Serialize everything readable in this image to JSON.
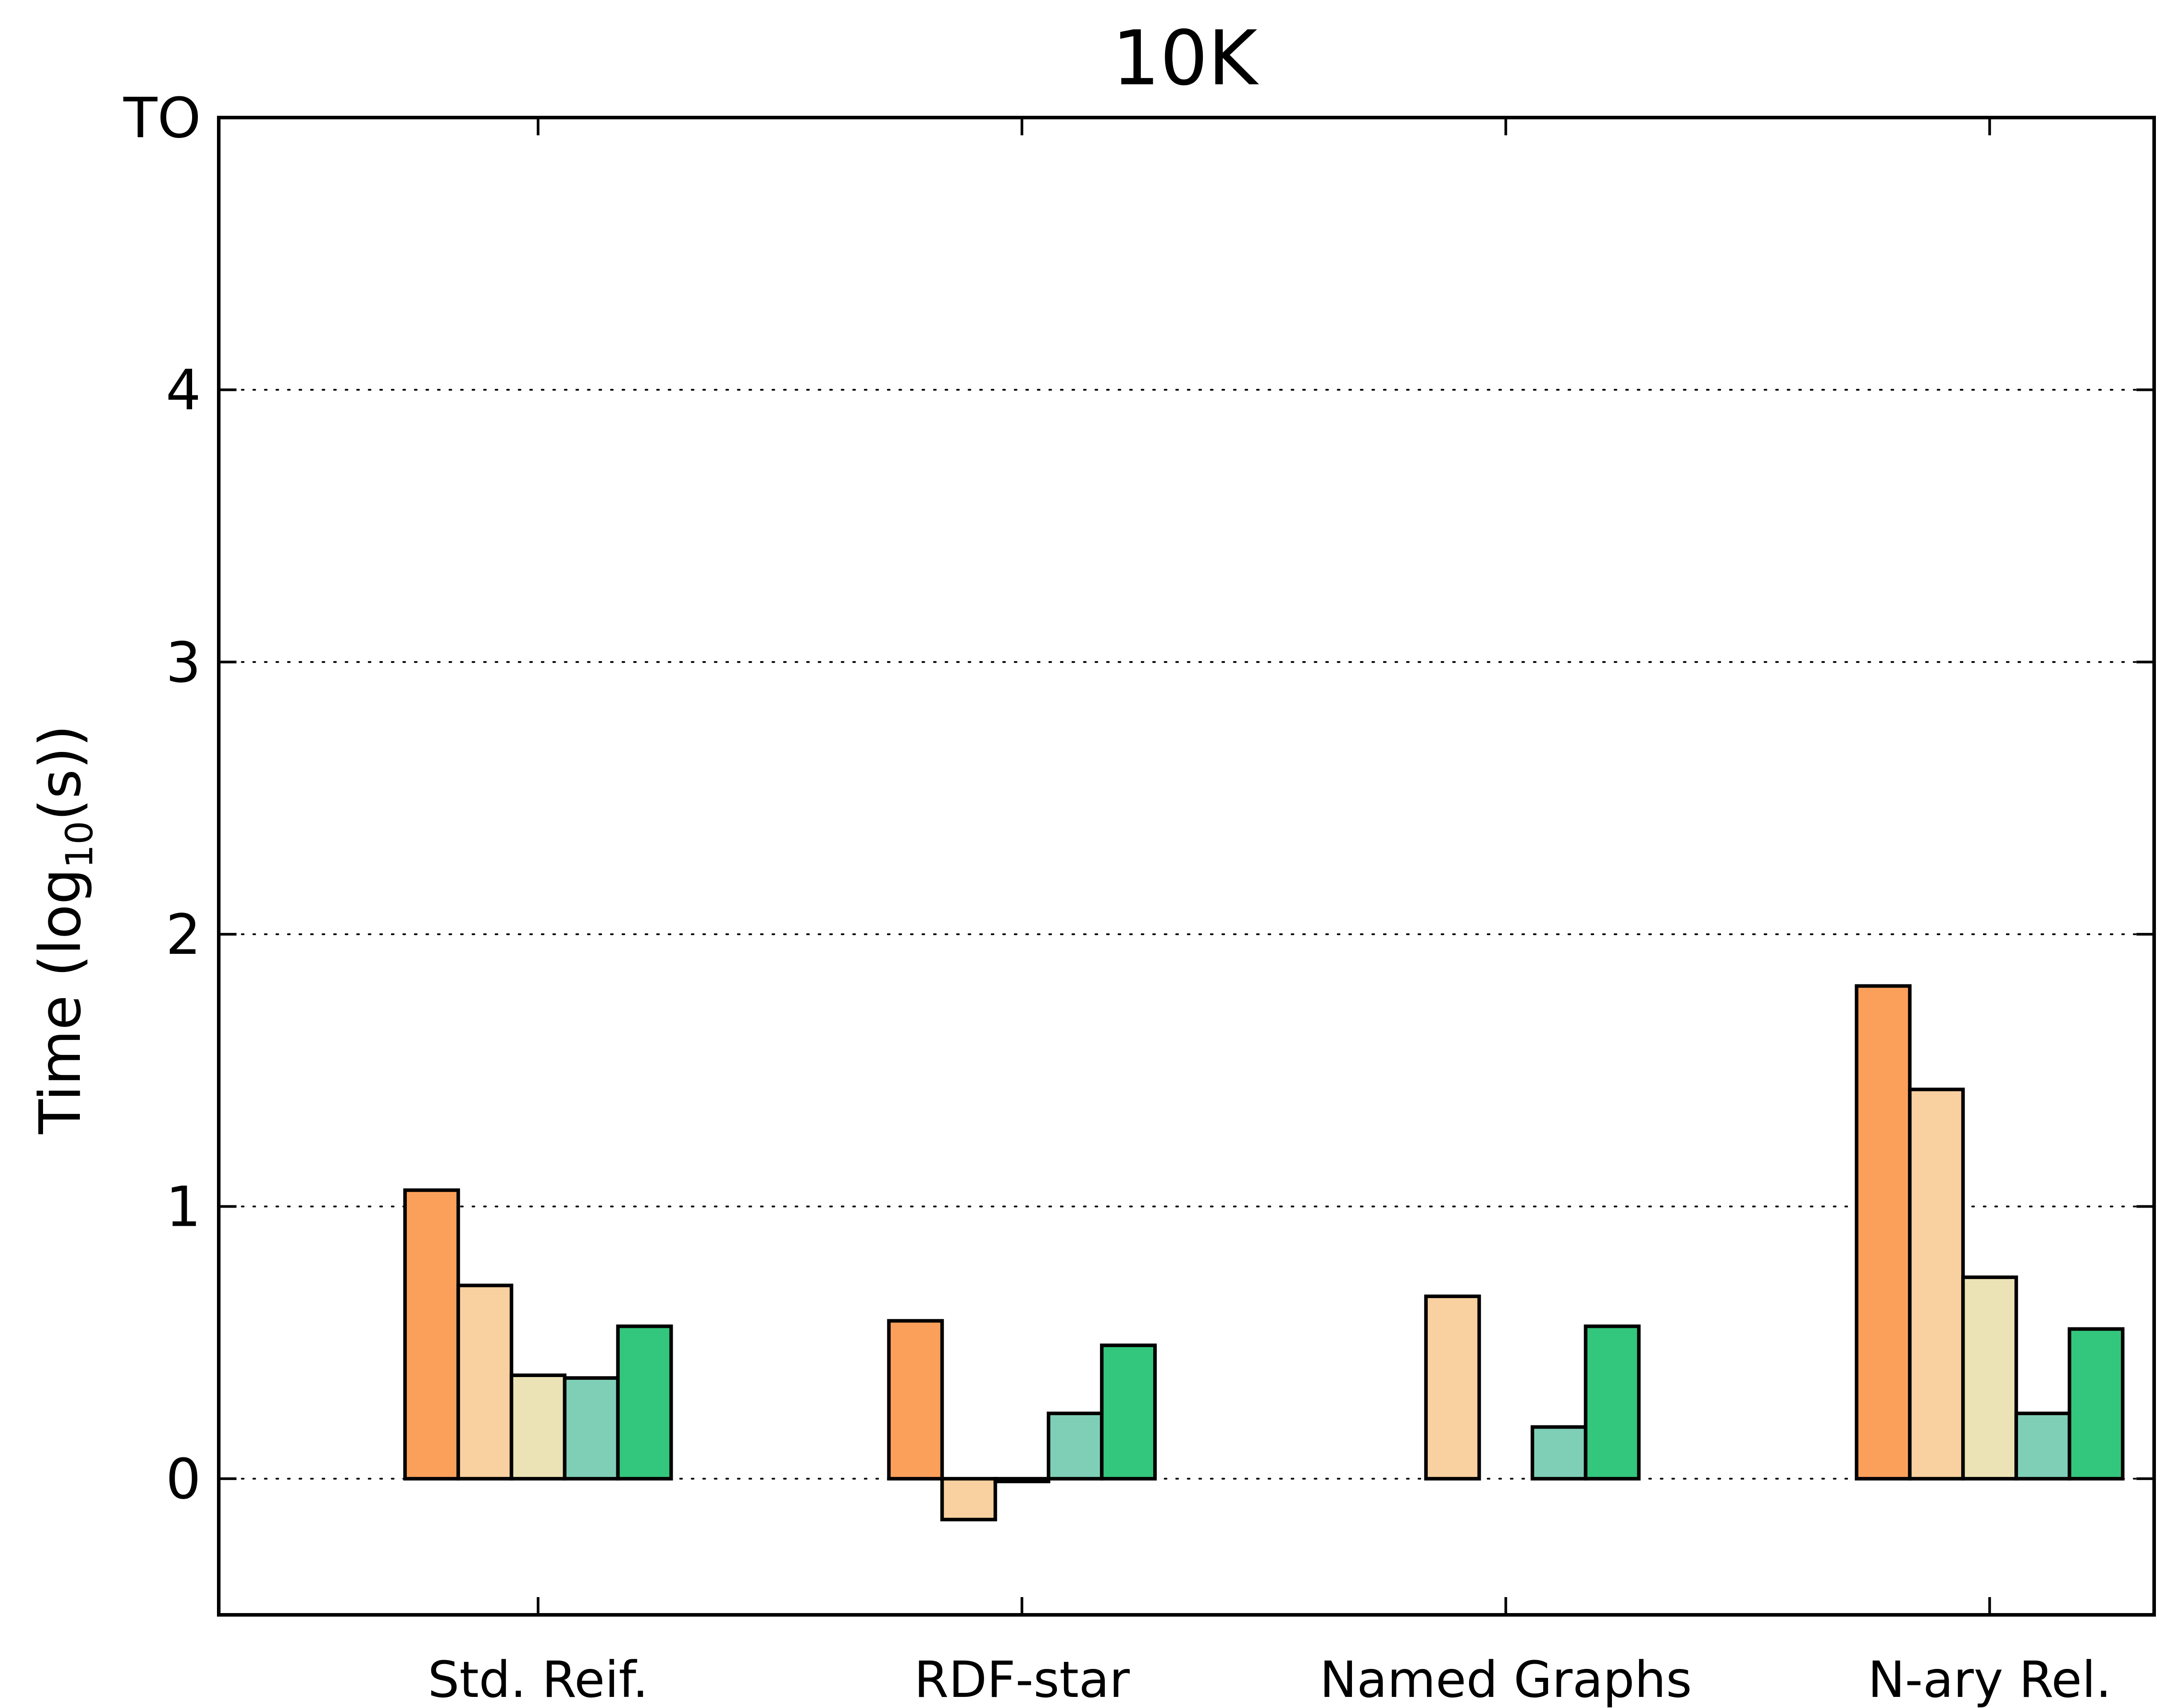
{
  "chart_data": {
    "type": "bar",
    "title": "10K",
    "xlabel": "",
    "ylabel": {
      "prefix": "Time (log",
      "subscript": "10",
      "suffix": "(s))"
    },
    "ylim": [
      -0.5,
      5
    ],
    "yticks": [
      {
        "value": 0,
        "label": "0"
      },
      {
        "value": 1,
        "label": "1"
      },
      {
        "value": 2,
        "label": "2"
      },
      {
        "value": 3,
        "label": "3"
      },
      {
        "value": 4,
        "label": "4"
      },
      {
        "value": 5,
        "label": "TO"
      }
    ],
    "grid": "horizontal-dotted",
    "categories": [
      "Std. Reif.",
      "RDF-star",
      "Named Graphs",
      "N-ary Rel."
    ],
    "series": [
      {
        "color": "#fba05b",
        "values": [
          1.06,
          0.58,
          null,
          1.81
        ]
      },
      {
        "color": "#f9d09f",
        "values": [
          0.71,
          -0.15,
          0.67,
          1.43
        ]
      },
      {
        "color": "#ebe3b6",
        "values": [
          0.38,
          -0.01,
          null,
          0.74
        ]
      },
      {
        "color": "#7fcfb6",
        "values": [
          0.37,
          0.24,
          0.19,
          0.24
        ]
      },
      {
        "color": "#33c67d",
        "values": [
          0.56,
          0.49,
          0.56,
          0.55
        ]
      }
    ]
  }
}
